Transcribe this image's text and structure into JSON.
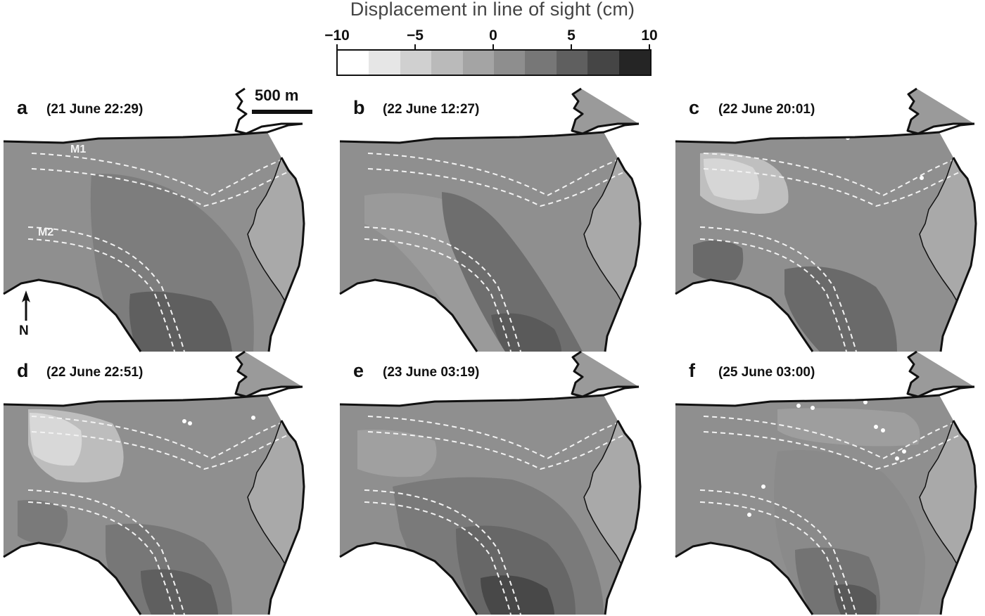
{
  "figure": {
    "colorbar": {
      "title": "Displacement in line of sight (cm)",
      "ticks": [
        "−10",
        "−5",
        "0",
        "5",
        "10"
      ],
      "range": [
        -10,
        10
      ],
      "bins": [
        "#ffffff",
        "#e6e6e6",
        "#d0d0d0",
        "#bababa",
        "#a4a4a4",
        "#8e8e8e",
        "#777777",
        "#5f5f5f",
        "#454545",
        "#252525"
      ]
    },
    "scale_bar": {
      "label": "500 m"
    },
    "north_arrow": {
      "label": "N"
    },
    "moraine_labels": {
      "m1": "M1",
      "m2": "M2"
    },
    "colors": {
      "terrain": "#8f8f8f",
      "coastline": "#111111",
      "moraine_line": "#f2f2f2",
      "eastern_margin": "#a9a9a9"
    },
    "panels": [
      {
        "letter": "a",
        "date": "(21 June 22:29)"
      },
      {
        "letter": "b",
        "date": "(22 June 12:27)"
      },
      {
        "letter": "c",
        "date": "(22 June 20:01)"
      },
      {
        "letter": "d",
        "date": "(22 June 22:51)"
      },
      {
        "letter": "e",
        "date": "(23 June 03:19)"
      },
      {
        "letter": "f",
        "date": "(25 June 03:00)"
      }
    ]
  }
}
